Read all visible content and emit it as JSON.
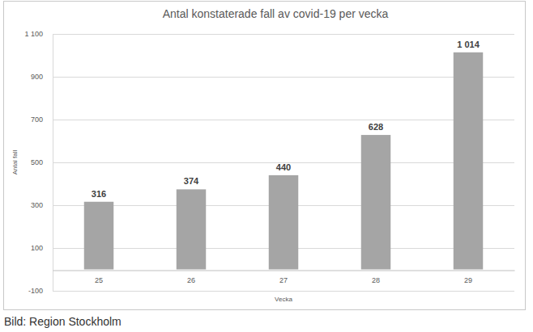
{
  "chart_data": {
    "type": "bar",
    "title": "Antal konstaterade fall av covid-19 per vecka",
    "x_label": "Vecka",
    "y_label": "Antal fall",
    "caption": "Bild: Region Stockholm",
    "categories": [
      "25",
      "26",
      "27",
      "28",
      "29"
    ],
    "values": [
      316,
      374,
      440,
      628,
      1014
    ],
    "value_labels": [
      "316",
      "374",
      "440",
      "628",
      "1 014"
    ],
    "color": "#a5a5a5",
    "ylim": [
      -100,
      1100
    ],
    "yticks": [
      -100,
      100,
      300,
      500,
      700,
      900,
      {
        "value": 1100,
        "label": "1 100"
      }
    ],
    "grid": true,
    "data_labels": true
  }
}
